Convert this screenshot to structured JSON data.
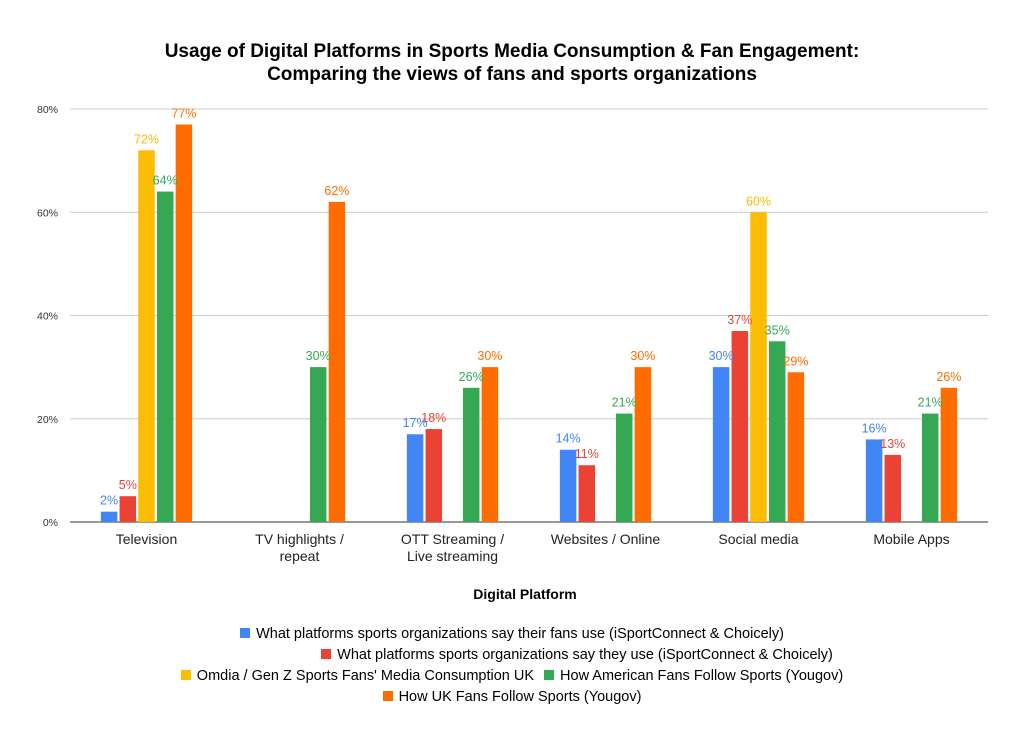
{
  "chart_data": {
    "type": "bar",
    "title_lines": [
      "Usage of Digital Platforms in Sports Media Consumption & Fan Engagement:",
      "Comparing the views of fans and sports organizations"
    ],
    "xlabel": "Digital Platform",
    "ylabel": "",
    "ylim": [
      0,
      80
    ],
    "yticks": [
      "0%",
      "20%",
      "40%",
      "60%",
      "80%"
    ],
    "ytick_values": [
      0,
      20,
      40,
      60,
      80
    ],
    "grid": true,
    "legend_position": "bottom",
    "categories": [
      [
        "Television"
      ],
      [
        "TV highlights /",
        "repeat"
      ],
      [
        "OTT Streaming /",
        "Live streaming"
      ],
      [
        "Websites / Online"
      ],
      [
        "Social media"
      ],
      [
        "Mobile Apps"
      ]
    ],
    "series": [
      {
        "name": "What platforms sports organizations say their fans use (iSportConnect & Choicely)",
        "color": "#4285F4",
        "values": [
          2,
          null,
          17,
          14,
          30,
          16
        ],
        "labels": [
          "2%",
          "",
          "17%",
          "14%",
          "30%",
          "16%"
        ]
      },
      {
        "name": "What platforms sports organizations say they use (iSportConnect & Choicely)",
        "color": "#EA4335",
        "values": [
          5,
          null,
          18,
          11,
          37,
          13
        ],
        "labels": [
          "5%",
          "",
          "18%",
          "11%",
          "37%",
          "13%"
        ]
      },
      {
        "name": "Omdia / Gen Z Sports Fans' Media Consumption UK",
        "color": "#FBBC04",
        "values": [
          72,
          null,
          null,
          null,
          60,
          null
        ],
        "labels": [
          "72%",
          "",
          "",
          "",
          "60%",
          ""
        ]
      },
      {
        "name": "How American Fans Follow Sports (Yougov)",
        "color": "#34A853",
        "values": [
          64,
          30,
          26,
          21,
          35,
          21
        ],
        "labels": [
          "64%",
          "30%",
          "26%",
          "21%",
          "35%",
          "21%"
        ]
      },
      {
        "name": "How UK Fans Follow Sports (Yougov)",
        "color": "#FF6D01",
        "values": [
          77,
          62,
          30,
          30,
          29,
          26
        ],
        "labels": [
          "77%",
          "62%",
          "30%",
          "30%",
          "29%",
          "26%"
        ]
      }
    ]
  }
}
